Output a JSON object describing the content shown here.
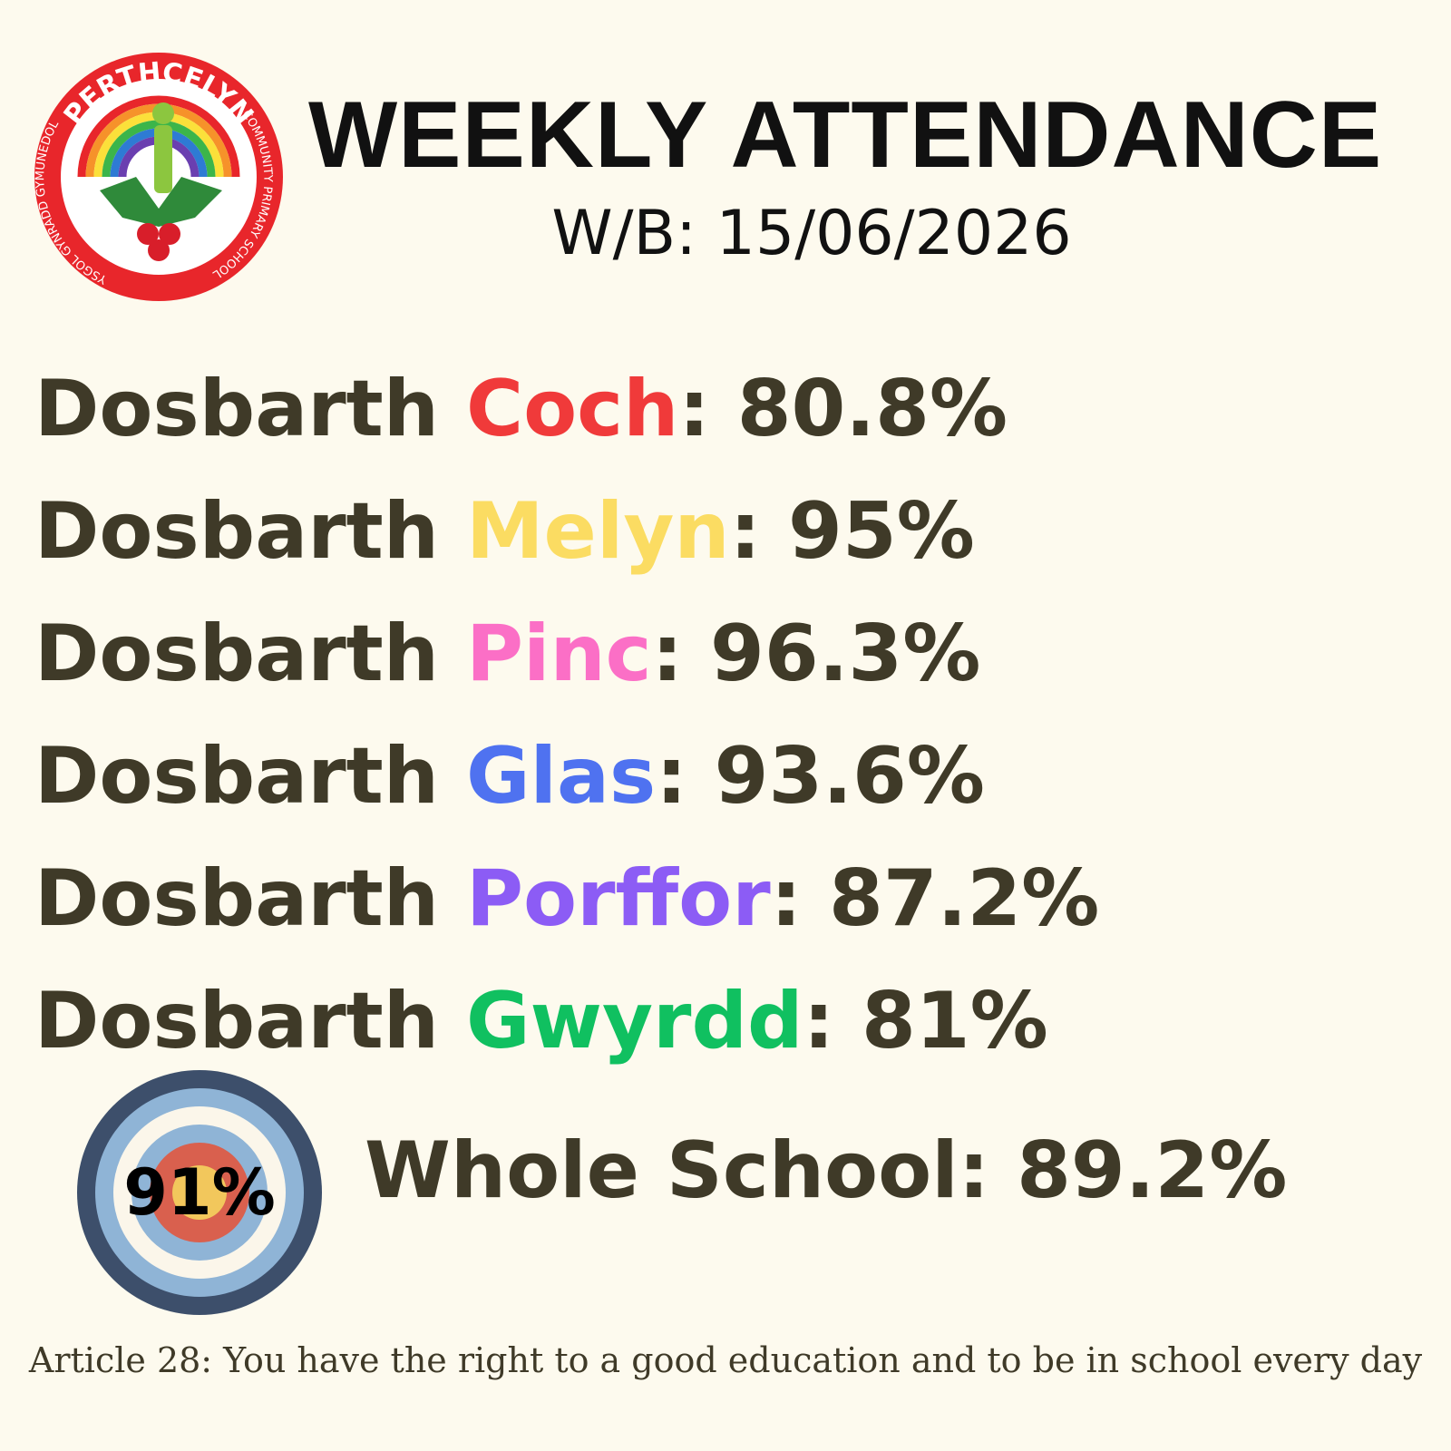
{
  "logo": {
    "top_text": "PERTHCELYN",
    "right_text": "COMMUNITY PRIMARY SCHOOL",
    "left_text": "YSGOL GYNRADD GYMUNEDOL"
  },
  "header": {
    "title": "WEEKLY ATTENDANCE",
    "subtitle": "W/B: 15/06/2026"
  },
  "separator": ":",
  "classes": [
    {
      "prefix": "Dosbarth",
      "name": "Coch",
      "color": "#f03a3a",
      "value": "80.8%"
    },
    {
      "prefix": "Dosbarth",
      "name": "Melyn",
      "color": "#fbdc62",
      "value": "95%"
    },
    {
      "prefix": "Dosbarth",
      "name": "Pinc",
      "color": "#fb6fc6",
      "value": "96.3%"
    },
    {
      "prefix": "Dosbarth",
      "name": "Glas",
      "color": "#4f72f0",
      "value": "93.6%"
    },
    {
      "prefix": "Dosbarth",
      "name": "Porffor",
      "color": "#8c5cf5",
      "value": "87.2%"
    },
    {
      "prefix": "Dosbarth",
      "name": "Gwyrdd",
      "color": "#10c060",
      "value": "81%"
    }
  ],
  "target": {
    "value": "91%"
  },
  "whole_school": {
    "label": "Whole School",
    "value": "89.2%"
  },
  "footer": "Article 28: You have the right to a good education and to be in school every day"
}
